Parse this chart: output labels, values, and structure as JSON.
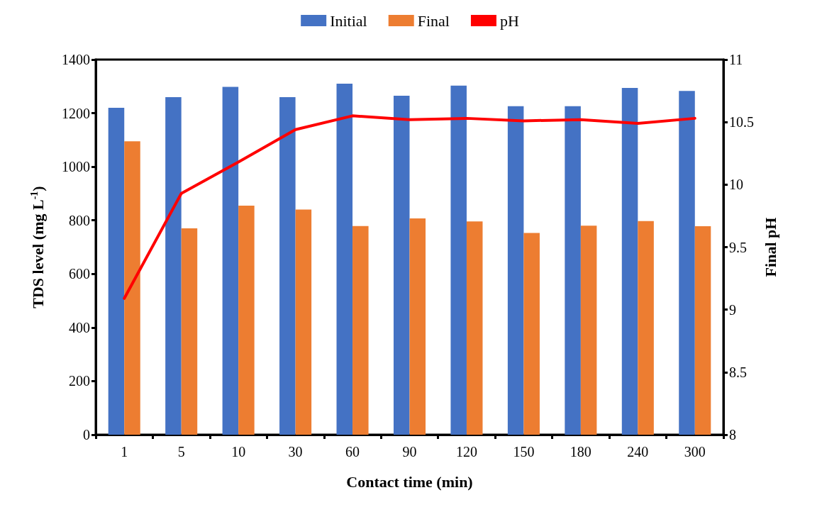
{
  "chart_data": {
    "type": "bar",
    "categories": [
      "1",
      "5",
      "10",
      "30",
      "60",
      "90",
      "120",
      "150",
      "180",
      "240",
      "300"
    ],
    "xlabel": "Contact time (min)",
    "ylabel": "TDS level (mg L$^{-1}$)",
    "y2label": "Final pH",
    "series": [
      {
        "name": "Initial",
        "color": "#4472c4",
        "values": [
          1220,
          1260,
          1298,
          1260,
          1310,
          1265,
          1303,
          1226,
          1226,
          1294,
          1283
        ]
      },
      {
        "name": "Final",
        "color": "#ed7d31",
        "values": [
          1095,
          770,
          855,
          840,
          779,
          807,
          796,
          753,
          780,
          797,
          778
        ]
      },
      {
        "name": "pH",
        "type": "line",
        "axis": "y2",
        "color": "#ff0000",
        "values": [
          9.09,
          9.93,
          10.18,
          10.44,
          10.55,
          10.52,
          10.53,
          10.51,
          10.52,
          10.49,
          10.53
        ]
      }
    ],
    "ylim": [
      0,
      1400
    ],
    "yticks": [
      0,
      200,
      400,
      600,
      800,
      1000,
      1200,
      1400
    ],
    "y2lim": [
      8,
      11
    ],
    "y2ticks": [
      8,
      8.5,
      9,
      9.5,
      10,
      10.5,
      11
    ],
    "grid": false,
    "legend": "top",
    "marker": "none",
    "line_style": "solid"
  }
}
